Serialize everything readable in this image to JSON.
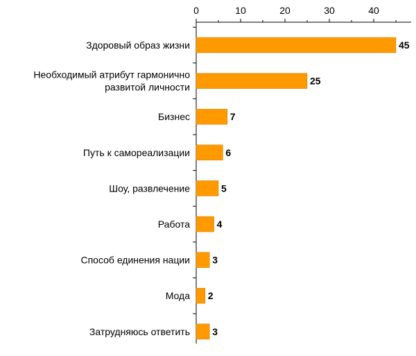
{
  "chart_data": {
    "type": "bar",
    "orientation": "horizontal",
    "categories": [
      [
        "Здоровый образ жизни"
      ],
      [
        "Необходимый атрибут гармонично",
        "развитой личности"
      ],
      [
        "Бизнес"
      ],
      [
        "Путь к самореализации"
      ],
      [
        "Шоу, развлечение"
      ],
      [
        "Работа"
      ],
      [
        "Способ единения нации"
      ],
      [
        "Мода"
      ],
      [
        "Затрудняюсь ответить"
      ]
    ],
    "values": [
      45,
      25,
      7,
      6,
      5,
      4,
      3,
      2,
      3
    ],
    "x_axis": {
      "position": "top",
      "min": 0,
      "max": 50,
      "ticks": [
        0,
        10,
        20,
        30,
        40
      ]
    },
    "grid": false,
    "legend": "none",
    "colors": {
      "bar": "#FF9900",
      "axis": "#000000",
      "text": "#000000"
    }
  }
}
